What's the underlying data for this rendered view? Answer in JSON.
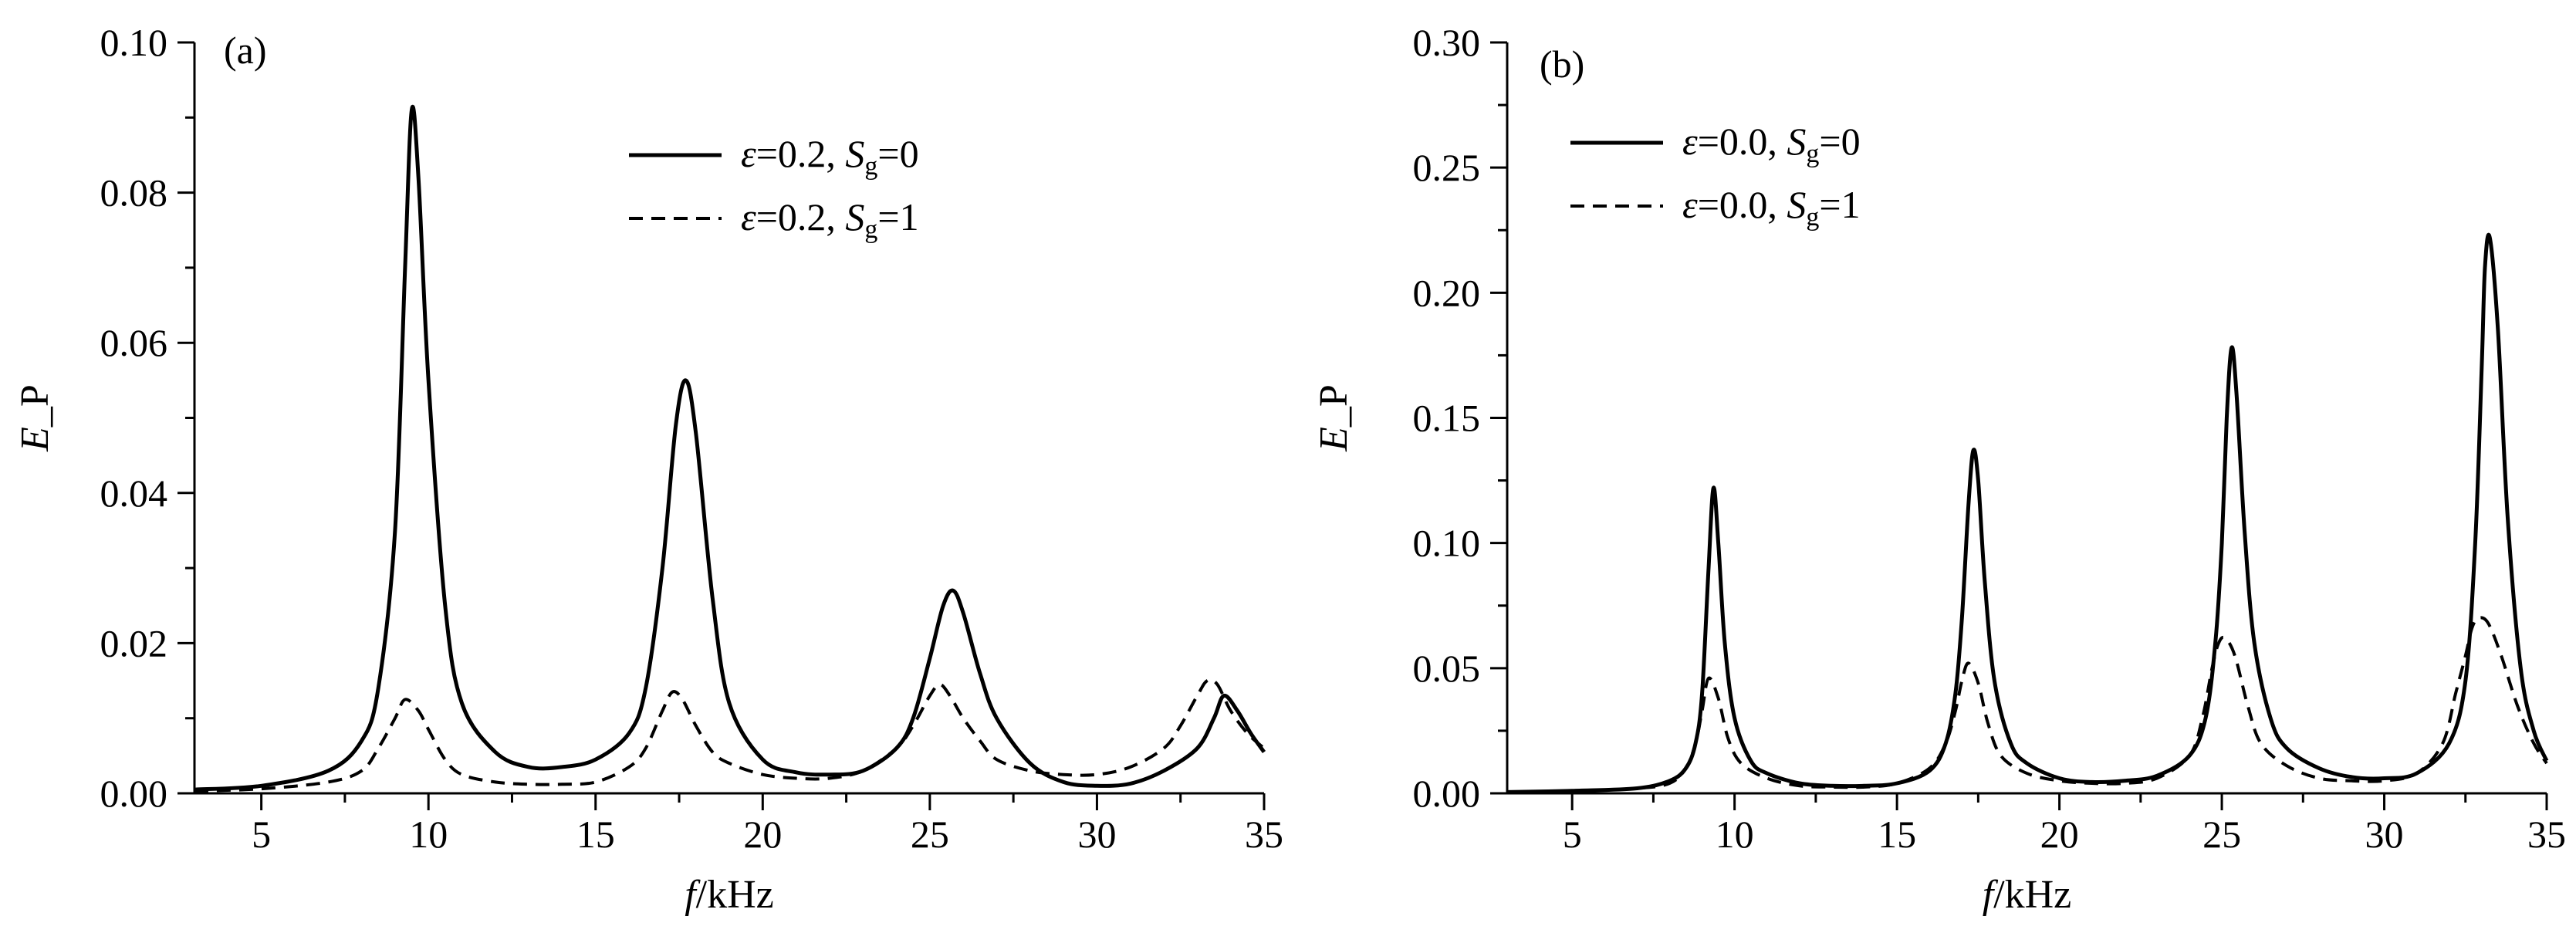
{
  "chart_data": [
    {
      "type": "line",
      "panel_label": "(a)",
      "xlabel_symbol": "f",
      "xlabel_unit": "/kHz",
      "ylabel_symbol": "E",
      "ylabel_suffix": "_P",
      "xlim": [
        3,
        35
      ],
      "ylim": [
        0,
        0.1
      ],
      "xticks": [
        5,
        10,
        15,
        20,
        25,
        30,
        35
      ],
      "yticks": [
        "0.00",
        "0.02",
        "0.04",
        "0.06",
        "0.08",
        "0.10"
      ],
      "legend_position": "top-right",
      "series": [
        {
          "legend": {
            "eps": "ε",
            "eq": "=0.2, ",
            "S": "S",
            "sub": "g",
            "val": "=0"
          },
          "style": "solid",
          "x": [
            3,
            5,
            7,
            8,
            8.5,
            9,
            9.3,
            9.5,
            9.7,
            10,
            10.5,
            11,
            12,
            13,
            14,
            15,
            16,
            16.5,
            17,
            17.4,
            17.7,
            18,
            18.5,
            19,
            20,
            21,
            22,
            23,
            24,
            24.5,
            25,
            25.4,
            25.7,
            26,
            26.5,
            27,
            28,
            29,
            30,
            31,
            32,
            33,
            33.5,
            33.8,
            34.2,
            34.6,
            35
          ],
          "y": [
            0.0005,
            0.001,
            0.003,
            0.007,
            0.014,
            0.035,
            0.07,
            0.091,
            0.082,
            0.055,
            0.025,
            0.012,
            0.0055,
            0.0035,
            0.0035,
            0.0045,
            0.008,
            0.014,
            0.03,
            0.049,
            0.055,
            0.048,
            0.026,
            0.012,
            0.0045,
            0.0028,
            0.0025,
            0.003,
            0.006,
            0.01,
            0.018,
            0.025,
            0.027,
            0.024,
            0.016,
            0.01,
            0.004,
            0.0015,
            0.001,
            0.0013,
            0.003,
            0.006,
            0.01,
            0.013,
            0.011,
            0.008,
            0.0055
          ]
        },
        {
          "legend": {
            "eps": "ε",
            "eq": "=0.2, ",
            "S": "S",
            "sub": "g",
            "val": "=1"
          },
          "style": "dashed",
          "x": [
            3,
            5,
            7,
            8,
            8.5,
            9,
            9.3,
            9.7,
            10,
            10.5,
            11,
            12,
            13,
            14,
            15,
            16,
            16.5,
            17,
            17.3,
            17.6,
            18,
            18.5,
            19,
            20,
            21,
            22,
            23,
            24,
            24.5,
            25,
            25.3,
            25.6,
            26,
            26.5,
            27,
            28,
            29,
            30,
            31,
            32,
            32.5,
            33,
            33.3,
            33.6,
            34,
            34.5,
            35
          ],
          "y": [
            0.0003,
            0.0006,
            0.0015,
            0.003,
            0.006,
            0.01,
            0.0125,
            0.011,
            0.0085,
            0.0045,
            0.0025,
            0.0015,
            0.0012,
            0.0012,
            0.0015,
            0.0035,
            0.006,
            0.011,
            0.0135,
            0.0125,
            0.009,
            0.0055,
            0.004,
            0.0025,
            0.002,
            0.002,
            0.003,
            0.006,
            0.009,
            0.013,
            0.0145,
            0.013,
            0.01,
            0.007,
            0.0045,
            0.003,
            0.0025,
            0.0025,
            0.0035,
            0.006,
            0.009,
            0.013,
            0.015,
            0.0145,
            0.011,
            0.008,
            0.006
          ]
        }
      ]
    },
    {
      "type": "line",
      "panel_label": "(b)",
      "xlabel_symbol": "f",
      "xlabel_unit": "/kHz",
      "ylabel_symbol": "E",
      "ylabel_suffix": "_P",
      "xlim": [
        3,
        35
      ],
      "ylim": [
        0,
        0.3
      ],
      "xticks": [
        5,
        10,
        15,
        20,
        25,
        30,
        35
      ],
      "yticks": [
        "0.00",
        "0.05",
        "0.10",
        "0.15",
        "0.20",
        "0.25",
        "0.30"
      ],
      "legend_position": "top-left",
      "series": [
        {
          "legend": {
            "eps": "ε",
            "eq": "=0.0, ",
            "S": "S",
            "sub": "g",
            "val": "=0"
          },
          "style": "solid",
          "x": [
            3,
            5,
            7,
            8,
            8.5,
            8.8,
            9,
            9.2,
            9.35,
            9.5,
            9.7,
            10,
            10.5,
            11,
            12,
            13,
            14,
            15,
            16,
            16.5,
            16.8,
            17,
            17.2,
            17.35,
            17.5,
            17.7,
            18,
            18.5,
            19,
            20,
            21,
            22,
            23,
            24,
            24.5,
            24.8,
            25,
            25.15,
            25.3,
            25.45,
            25.7,
            26,
            26.5,
            27,
            28,
            29,
            30,
            31,
            32,
            32.5,
            32.8,
            33,
            33.1,
            33.25,
            33.5,
            33.8,
            34.2,
            34.6,
            35
          ],
          "y": [
            0.0005,
            0.001,
            0.002,
            0.005,
            0.01,
            0.02,
            0.04,
            0.09,
            0.122,
            0.1,
            0.06,
            0.03,
            0.013,
            0.008,
            0.004,
            0.003,
            0.003,
            0.004,
            0.009,
            0.02,
            0.04,
            0.07,
            0.115,
            0.137,
            0.125,
            0.085,
            0.045,
            0.02,
            0.012,
            0.006,
            0.0045,
            0.005,
            0.007,
            0.015,
            0.03,
            0.06,
            0.1,
            0.15,
            0.178,
            0.16,
            0.105,
            0.06,
            0.03,
            0.018,
            0.01,
            0.0065,
            0.006,
            0.008,
            0.02,
            0.045,
            0.1,
            0.17,
            0.21,
            0.222,
            0.185,
            0.11,
            0.05,
            0.025,
            0.013
          ]
        },
        {
          "legend": {
            "eps": "ε",
            "eq": "=0.0, ",
            "S": "S",
            "sub": "g",
            "val": "=1"
          },
          "style": "dashed",
          "x": [
            3,
            5,
            7,
            8,
            8.5,
            8.8,
            9,
            9.2,
            9.5,
            9.8,
            10.2,
            11,
            12,
            13,
            14,
            15,
            16,
            16.5,
            16.8,
            17,
            17.2,
            17.5,
            17.8,
            18.2,
            19,
            20,
            21,
            22,
            23,
            24,
            24.4,
            24.7,
            24.9,
            25.1,
            25.4,
            25.8,
            26.2,
            27,
            28,
            29,
            30,
            31,
            31.8,
            32.2,
            32.5,
            32.7,
            32.9,
            33.2,
            33.6,
            34.1,
            34.6,
            35
          ],
          "y": [
            0.0005,
            0.001,
            0.002,
            0.004,
            0.01,
            0.02,
            0.033,
            0.046,
            0.038,
            0.022,
            0.012,
            0.006,
            0.003,
            0.0025,
            0.0025,
            0.004,
            0.01,
            0.02,
            0.033,
            0.045,
            0.052,
            0.044,
            0.028,
            0.015,
            0.008,
            0.005,
            0.004,
            0.004,
            0.006,
            0.015,
            0.03,
            0.05,
            0.06,
            0.062,
            0.055,
            0.035,
            0.02,
            0.011,
            0.006,
            0.005,
            0.005,
            0.008,
            0.02,
            0.04,
            0.055,
            0.066,
            0.07,
            0.068,
            0.055,
            0.035,
            0.02,
            0.012
          ]
        }
      ]
    }
  ]
}
